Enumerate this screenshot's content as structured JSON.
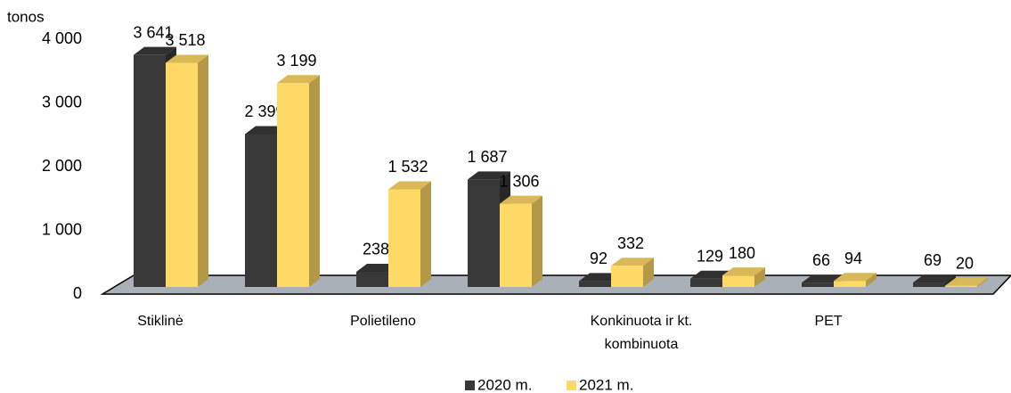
{
  "chart_data": {
    "type": "bar3d",
    "y_label": "tonos",
    "categories": [
      "Stiklinė",
      null,
      "Polietileno",
      null,
      "Konkinuota ir kt. kombinuota",
      null,
      "PET",
      null
    ],
    "series": [
      {
        "name": "2020 m.",
        "color": "#383838",
        "values": [
          3641,
          2399,
          238,
          1687,
          92,
          129,
          66,
          69
        ],
        "value_labels": [
          "3 641",
          "2 399",
          "238",
          "1 687",
          "92",
          "129",
          "66",
          "69"
        ]
      },
      {
        "name": "2021 m.",
        "color": "#ffd966",
        "values": [
          3518,
          3199,
          1532,
          1306,
          332,
          180,
          94,
          20
        ],
        "value_labels": [
          "3 518",
          "3 199",
          "1 532",
          "1 306",
          "332",
          "180",
          "94",
          "20"
        ]
      }
    ],
    "ylim": [
      0,
      4000
    ],
    "yticks": [
      0,
      {
        "value": 1000,
        "label": "1 000"
      },
      {
        "value": 2000,
        "label": "2 000"
      },
      {
        "value": 3000,
        "label": "3 000"
      },
      {
        "value": 4000,
        "label": "4 000"
      }
    ],
    "legend": "bottom"
  }
}
